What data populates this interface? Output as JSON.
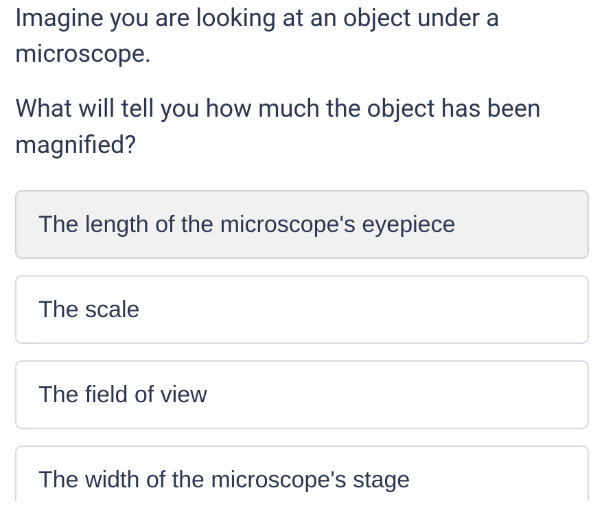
{
  "question": {
    "line1": "Imagine you are looking at an object under a microscope.",
    "line2": "What will tell you how much the object has been magnified?"
  },
  "options": [
    {
      "label": "The length of the microscope's eyepiece",
      "selected": true
    },
    {
      "label": "The scale",
      "selected": false
    },
    {
      "label": "The field of view",
      "selected": false
    },
    {
      "label": "The width of the microscope's stage",
      "selected": false
    }
  ],
  "styles": {
    "text_color": "#2c3650",
    "option_border": "#d6d9e0",
    "option_bg": "#ffffff",
    "option_selected_bg": "#f1f1f2",
    "question_fontsize": 36,
    "option_fontsize": 34,
    "border_radius": 10
  }
}
